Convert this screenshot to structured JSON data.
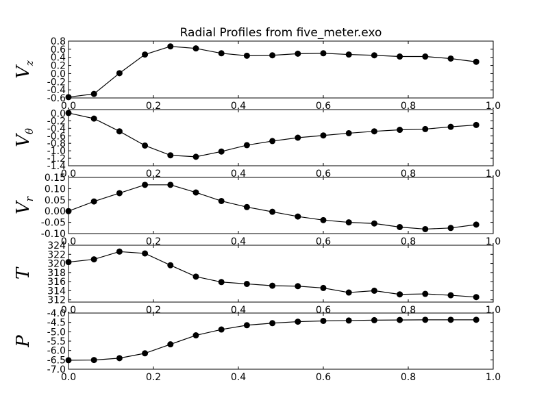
{
  "chart_data": {
    "type": "line",
    "title": "Radial Profiles from five_meter.exo",
    "x": [
      0.0,
      0.06,
      0.12,
      0.18,
      0.24,
      0.3,
      0.36,
      0.42,
      0.48,
      0.54,
      0.6,
      0.66,
      0.72,
      0.78,
      0.84,
      0.9,
      0.96
    ],
    "xlim": [
      0.0,
      1.0
    ],
    "xticks": [
      "0.0",
      "0.2",
      "0.4",
      "0.6",
      "0.8",
      "1.0"
    ],
    "grid": false,
    "color": "#000000",
    "panels": [
      {
        "ylabel_base": "V",
        "ylabel_sub": "z",
        "ylim": [
          -0.6,
          0.8
        ],
        "yticks": [
          "-0.6",
          "-0.4",
          "-0.2",
          "0.0",
          "0.2",
          "0.4",
          "0.6",
          "0.8"
        ],
        "values": [
          -0.58,
          -0.5,
          0.01,
          0.47,
          0.67,
          0.62,
          0.5,
          0.44,
          0.45,
          0.49,
          0.5,
          0.47,
          0.45,
          0.42,
          0.42,
          0.37,
          0.29
        ]
      },
      {
        "ylabel_base": "V",
        "ylabel_sub": "θ",
        "ylim": [
          -1.4,
          0.1
        ],
        "yticks": [
          "-1.4",
          "-1.2",
          "-1.0",
          "-0.8",
          "-0.6",
          "-0.4",
          "-0.2",
          "0.0"
        ],
        "values": [
          0.01,
          -0.14,
          -0.48,
          -0.86,
          -1.12,
          -1.16,
          -1.02,
          -0.85,
          -0.74,
          -0.65,
          -0.59,
          -0.53,
          -0.48,
          -0.44,
          -0.42,
          -0.36,
          -0.31
        ]
      },
      {
        "ylabel_base": "V",
        "ylabel_sub": "r",
        "ylim": [
          -0.1,
          0.15
        ],
        "yticks": [
          "-0.10",
          "-0.05",
          "0.00",
          "0.05",
          "0.10",
          "0.15"
        ],
        "values": [
          0.0,
          0.043,
          0.08,
          0.117,
          0.117,
          0.083,
          0.045,
          0.018,
          -0.003,
          -0.024,
          -0.04,
          -0.05,
          -0.055,
          -0.071,
          -0.08,
          -0.075,
          -0.06
        ]
      },
      {
        "ylabel_base": "T",
        "ylabel_sub": "",
        "ylim": [
          311.5,
          324
        ],
        "yticks": [
          "312",
          "314",
          "316",
          "318",
          "320",
          "322",
          "324"
        ],
        "values": [
          320.3,
          320.9,
          322.6,
          322.2,
          319.6,
          317.1,
          315.9,
          315.5,
          315.1,
          315.0,
          314.6,
          313.6,
          314.0,
          313.2,
          313.3,
          313.0,
          312.6
        ]
      },
      {
        "ylabel_base": "P",
        "ylabel_sub": "",
        "ylim": [
          -7.0,
          -4.0
        ],
        "yticks": [
          "-7.0",
          "-6.5",
          "-6.0",
          "-5.5",
          "-5.0",
          "-4.5",
          "-4.0"
        ],
        "values": [
          -6.52,
          -6.51,
          -6.41,
          -6.15,
          -5.67,
          -5.19,
          -4.88,
          -4.65,
          -4.54,
          -4.46,
          -4.42,
          -4.4,
          -4.38,
          -4.37,
          -4.36,
          -4.36,
          -4.36
        ]
      }
    ]
  }
}
